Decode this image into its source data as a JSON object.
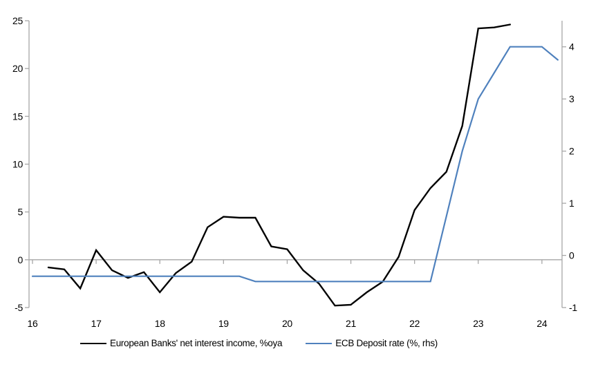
{
  "page": {
    "background": "#ffffff"
  },
  "colors": {
    "axis": "#a6a6a6",
    "zero_line": "#a6a6a6",
    "series_nii": "#000000",
    "series_ecb": "#4f81bd",
    "tick_label": "#000000"
  },
  "legend": {
    "items": [
      {
        "label": "European Banks' net interest income, %oya",
        "color": "#000000"
      },
      {
        "label": "ECB Deposit rate (%, rhs)",
        "color": "#4f81bd"
      }
    ]
  },
  "chart_data": {
    "type": "line",
    "title": "",
    "xlabel": "",
    "ylabel_left": "",
    "ylabel_right": "",
    "grid": false,
    "legend_position": "bottom",
    "x_axis": {
      "range": [
        15.946,
        24.316
      ],
      "ticks": [
        16,
        17,
        18,
        19,
        20,
        21,
        22,
        23,
        24
      ],
      "tick_labels": [
        "16",
        "17",
        "18",
        "19",
        "20",
        "21",
        "22",
        "23",
        "24"
      ]
    },
    "y_axis_left": {
      "range": [
        -5,
        25
      ],
      "ticks": [
        25,
        20,
        15,
        10,
        5,
        0,
        -5
      ],
      "tick_labels": [
        "25",
        "20",
        "15",
        "10",
        "5",
        "0",
        "-5"
      ]
    },
    "y_axis_right": {
      "range": [
        -1,
        4.5
      ],
      "ticks": [
        4,
        3,
        2,
        1,
        0,
        -1
      ],
      "tick_labels": [
        "4",
        "3",
        "2",
        "1",
        "0",
        "-1"
      ]
    },
    "series": [
      {
        "name": "European Banks' net interest income, %oya",
        "axis": "left",
        "color": "#000000",
        "width": 2.4,
        "x": [
          16.25,
          16.5,
          16.75,
          17.0,
          17.25,
          17.5,
          17.75,
          18.0,
          18.25,
          18.5,
          18.75,
          19.0,
          19.25,
          19.5,
          19.75,
          20.0,
          20.25,
          20.5,
          20.75,
          21.0,
          21.25,
          21.5,
          21.75,
          22.0,
          22.25,
          22.5,
          22.75,
          23.0,
          23.25,
          23.5
        ],
        "values": [
          -0.8,
          -1.0,
          -3.0,
          1.0,
          -1.1,
          -1.9,
          -1.3,
          -3.4,
          -1.4,
          -0.2,
          3.4,
          4.5,
          4.4,
          4.4,
          1.4,
          1.1,
          -1.1,
          -2.5,
          -4.8,
          -4.7,
          -3.4,
          -2.3,
          0.3,
          5.2,
          7.5,
          9.2,
          14.0,
          24.2,
          24.3,
          24.6
        ]
      },
      {
        "name": "ECB Deposit rate (%, rhs)",
        "axis": "right",
        "color": "#4f81bd",
        "width": 2.2,
        "x": [
          16.0,
          16.25,
          16.5,
          16.75,
          17.0,
          17.25,
          17.5,
          17.75,
          18.0,
          18.25,
          18.5,
          18.75,
          19.0,
          19.25,
          19.5,
          19.75,
          20.0,
          20.25,
          20.5,
          20.75,
          21.0,
          21.25,
          21.5,
          21.75,
          22.0,
          22.25,
          22.5,
          22.75,
          23.0,
          23.25,
          23.5,
          23.75,
          24.0,
          24.25
        ],
        "values": [
          -0.4,
          -0.4,
          -0.4,
          -0.4,
          -0.4,
          -0.4,
          -0.4,
          -0.4,
          -0.4,
          -0.4,
          -0.4,
          -0.4,
          -0.4,
          -0.4,
          -0.5,
          -0.5,
          -0.5,
          -0.5,
          -0.5,
          -0.5,
          -0.5,
          -0.5,
          -0.5,
          -0.5,
          -0.5,
          -0.5,
          0.75,
          2.0,
          3.0,
          3.5,
          4.0,
          4.0,
          4.0,
          3.75
        ]
      }
    ]
  }
}
